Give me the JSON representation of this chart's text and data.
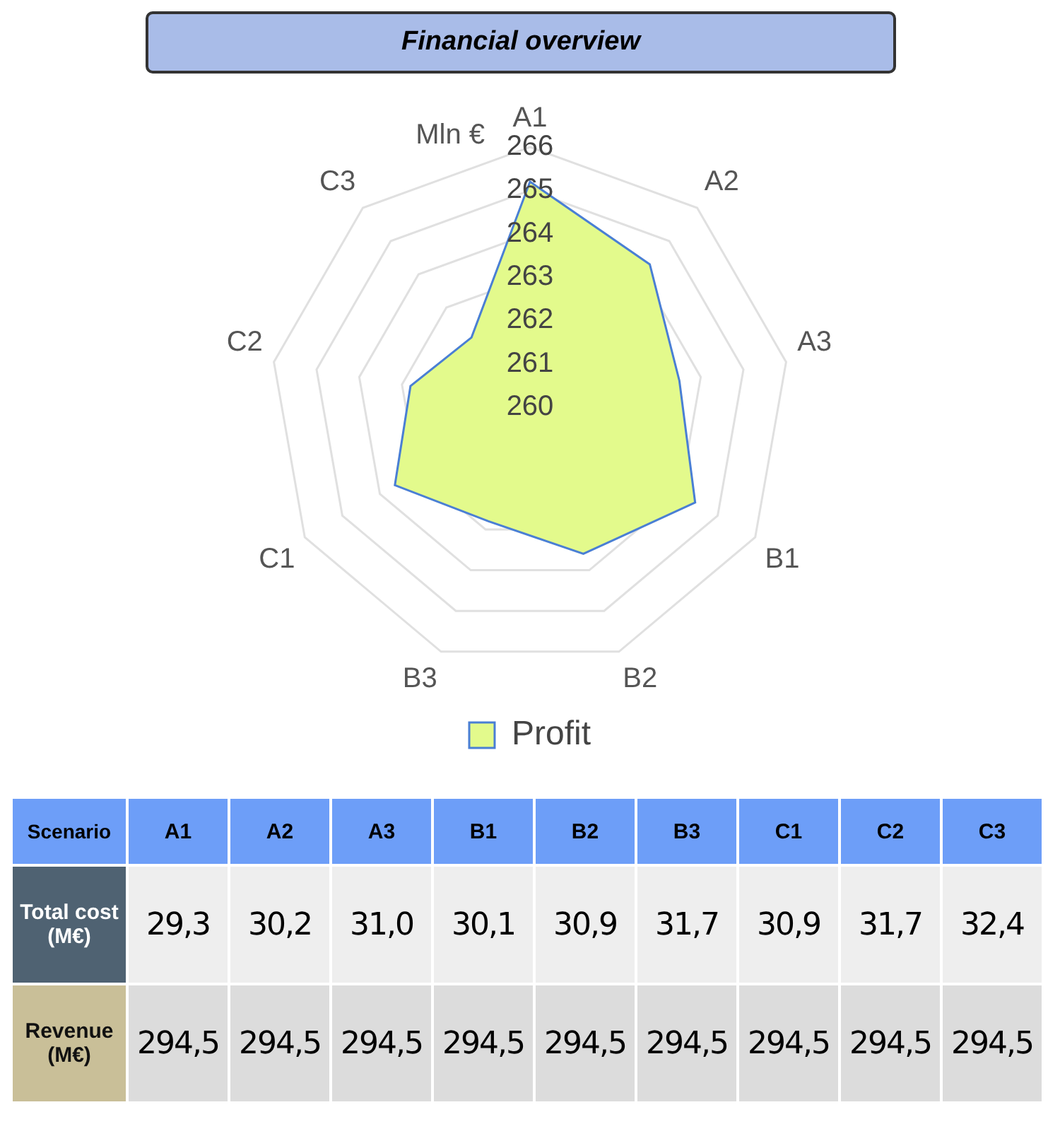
{
  "chart_data": [
    {
      "type": "radar",
      "title": "Financial overview",
      "ylabel": "Mln €",
      "categories": [
        "A1",
        "A2",
        "A3",
        "B1",
        "B2",
        "B3",
        "C1",
        "C2",
        "C3"
      ],
      "series": [
        {
          "name": "Profit",
          "color": "#e3fa8c",
          "values": [
            265.2,
            264.3,
            263.5,
            264.4,
            263.6,
            262.8,
            263.6,
            262.8,
            262.1
          ]
        }
      ],
      "ylim": [
        260,
        266
      ],
      "yticks": [
        260,
        261,
        262,
        263,
        264,
        265,
        266
      ],
      "grid": true,
      "legend": "bottom"
    },
    {
      "type": "heatmap",
      "xlabel": "Scenario",
      "categories": [
        "A1",
        "A2",
        "A3",
        "B1",
        "B2",
        "B3",
        "C1",
        "C2",
        "C3"
      ],
      "y_categories": [
        "Total cost (M€)",
        "Revenue (M€)"
      ],
      "cells": [
        [
          29.3,
          30.2,
          31.0,
          30.1,
          30.9,
          31.7,
          30.9,
          31.7,
          32.4
        ],
        [
          294.5,
          294.5,
          294.5,
          294.5,
          294.5,
          294.5,
          294.5,
          294.5,
          294.5
        ]
      ],
      "cell_labels": [
        [
          "29,3",
          "30,2",
          "31,0",
          "30,1",
          "30,9",
          "31,7",
          "30,9",
          "31,7",
          "32,4"
        ],
        [
          "294,5",
          "294,5",
          "294,5",
          "294,5",
          "294,5",
          "294,5",
          "294,5",
          "294,5",
          "294,5"
        ]
      ]
    }
  ]
}
